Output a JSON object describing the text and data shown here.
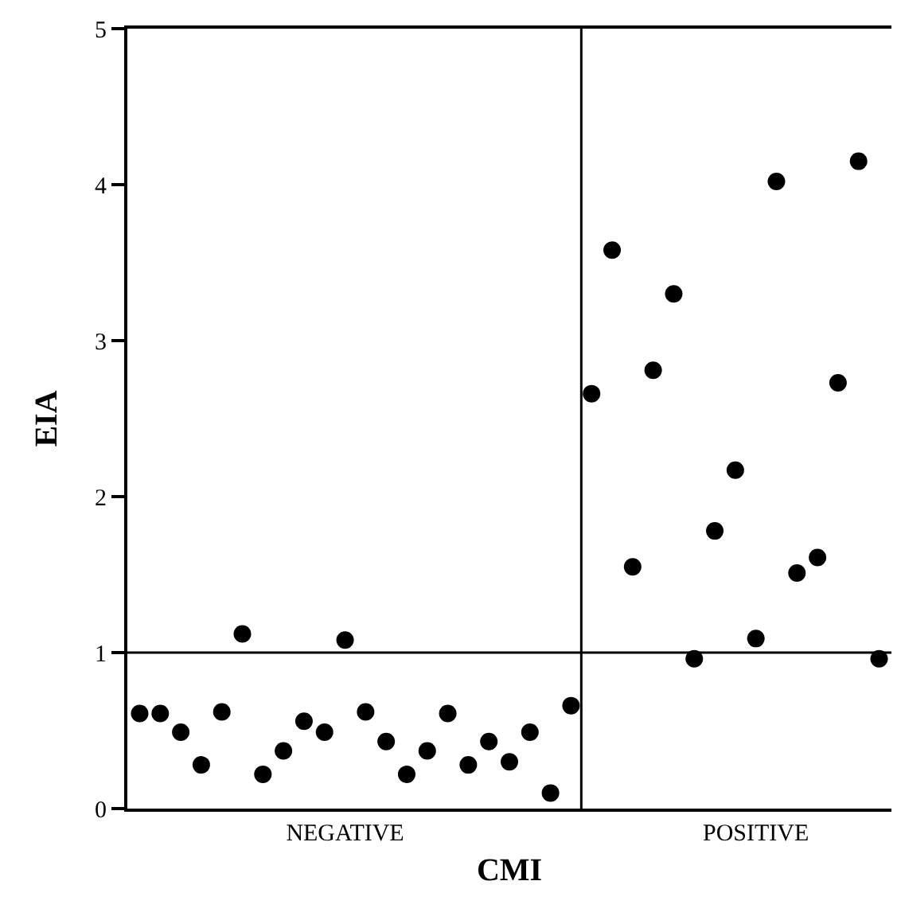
{
  "chart_data": {
    "type": "scatter",
    "xlabel": "CMI",
    "ylabel": "EIA",
    "categories": [
      null,
      null,
      null,
      null,
      null,
      null,
      null,
      null,
      null,
      null,
      "NEGATIVE",
      null,
      null,
      null,
      null,
      null,
      null,
      null,
      null,
      null,
      null,
      null,
      null,
      null,
      null,
      null,
      null,
      null,
      null,
      null,
      "POSITIVE",
      null,
      null,
      null,
      null,
      null,
      null
    ],
    "series": [
      {
        "color": "#000000",
        "values": [
          0.61,
          0.61,
          0.49,
          0.28,
          0.62,
          1.12,
          0.22,
          0.37,
          0.56,
          0.49,
          1.08,
          0.62,
          0.43,
          0.22,
          0.37,
          0.61,
          0.28,
          0.43,
          0.3,
          0.49,
          0.1,
          0.66,
          2.66,
          3.58,
          1.55,
          2.81,
          3.3,
          0.96,
          1.78,
          2.17,
          1.09,
          4.02,
          1.51,
          1.61,
          2.73,
          4.15,
          0.96
        ]
      }
    ],
    "ylim": [
      0,
      5
    ],
    "yticks": [
      0,
      1,
      2,
      3,
      4,
      5
    ],
    "ref_lines": [
      {
        "axis": "y",
        "value": 1,
        "color": "#000000"
      }
    ],
    "marker": "circle",
    "grid": false
  }
}
